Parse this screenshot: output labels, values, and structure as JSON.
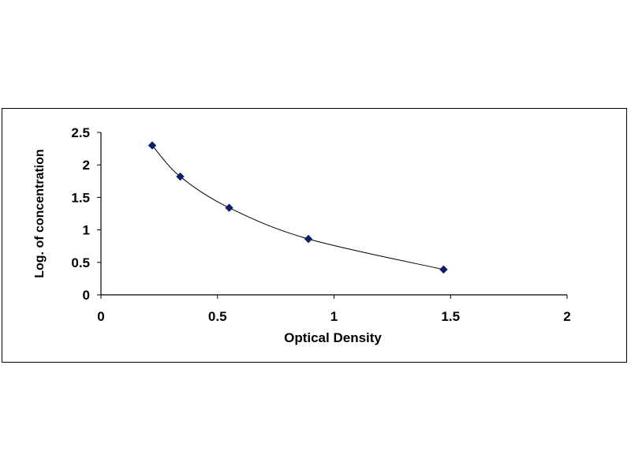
{
  "chart_data": {
    "type": "scatter",
    "xlabel": "Optical Density",
    "ylabel": "Log. of concentration",
    "xlim": [
      0,
      2
    ],
    "ylim": [
      0,
      2.5
    ],
    "x_ticks": [
      "0",
      "0.5",
      "1",
      "1.5",
      "2"
    ],
    "y_ticks": [
      "0",
      "0.5",
      "1",
      "1.5",
      "2",
      "2.5"
    ],
    "grid": false,
    "series": [
      {
        "color": "#0b1f6b",
        "marker": "diamond",
        "smoothed_line": true,
        "points": [
          {
            "x": 0.22,
            "y": 2.3
          },
          {
            "x": 0.34,
            "y": 1.82
          },
          {
            "x": 0.55,
            "y": 1.34
          },
          {
            "x": 0.89,
            "y": 0.86
          },
          {
            "x": 1.47,
            "y": 0.39
          }
        ]
      }
    ]
  }
}
